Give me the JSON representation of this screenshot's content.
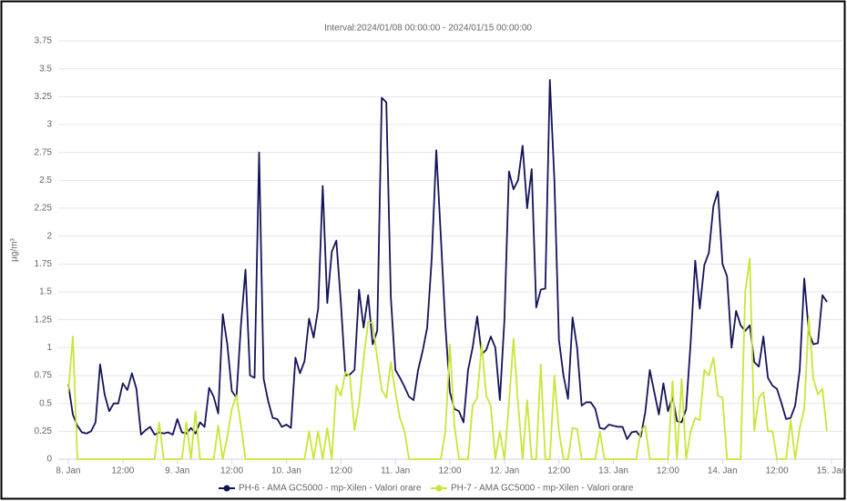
{
  "chart_data": {
    "type": "line",
    "title": "Interval:2024/01/08 00:00:00 - 2024/01/15 00:00:00",
    "y_label": "µg/m³",
    "x": [
      0,
      1,
      2,
      3,
      4,
      5,
      6,
      7,
      8,
      9,
      10,
      11,
      12,
      13,
      14,
      15,
      16,
      17,
      18,
      19,
      20,
      21,
      22,
      23,
      24,
      25,
      26,
      27,
      28,
      29,
      30,
      31,
      32,
      33,
      34,
      35,
      36,
      37,
      38,
      39,
      40,
      41,
      42,
      43,
      44,
      45,
      46,
      47,
      48,
      49,
      50,
      51,
      52,
      53,
      54,
      55,
      56,
      57,
      58,
      59,
      60,
      61,
      62,
      63,
      64,
      65,
      66,
      67,
      68,
      69,
      70,
      71,
      72,
      73,
      74,
      75,
      76,
      77,
      78,
      79,
      80,
      81,
      82,
      83,
      84,
      85,
      86,
      87,
      88,
      89,
      90,
      91,
      92,
      93,
      94,
      95,
      96,
      97,
      98,
      99,
      100,
      101,
      102,
      103,
      104,
      105,
      106,
      107,
      108,
      109,
      110,
      111,
      112,
      113,
      114,
      115,
      116,
      117,
      118,
      119,
      120,
      121,
      122,
      123,
      124,
      125,
      126,
      127,
      128,
      129,
      130,
      131,
      132,
      133,
      134,
      135,
      136,
      137,
      138,
      139,
      140,
      141,
      142,
      143,
      144,
      145,
      146,
      147,
      148,
      149,
      150,
      151,
      152,
      153,
      154,
      155,
      156,
      157,
      158,
      159,
      160,
      161,
      162,
      163,
      164,
      165,
      166,
      167
    ],
    "series": [
      {
        "name": "PH-6 - AMA GC5000 - mp-Xilen - Valori orare",
        "color": "#14145a",
        "values": [
          0.67,
          0.4,
          0.3,
          0.24,
          0.23,
          0.25,
          0.33,
          0.85,
          0.58,
          0.43,
          0.5,
          0.5,
          0.68,
          0.62,
          0.77,
          0.63,
          0.22,
          0.26,
          0.29,
          0.22,
          0.24,
          0.23,
          0.24,
          0.22,
          0.36,
          0.24,
          0.23,
          0.28,
          0.23,
          0.33,
          0.29,
          0.64,
          0.56,
          0.41,
          1.3,
          1.03,
          0.61,
          0.55,
          1.2,
          1.7,
          0.75,
          0.73,
          2.75,
          0.72,
          0.52,
          0.37,
          0.36,
          0.29,
          0.31,
          0.28,
          0.91,
          0.77,
          0.88,
          1.26,
          1.09,
          1.35,
          2.45,
          1.4,
          1.86,
          1.96,
          1.4,
          0.75,
          0.76,
          0.8,
          1.52,
          1.18,
          1.47,
          1.03,
          1.15,
          3.24,
          3.2,
          1.45,
          0.8,
          0.73,
          0.65,
          0.56,
          0.53,
          0.8,
          0.97,
          1.18,
          1.8,
          2.77,
          2.0,
          1.2,
          0.6,
          0.45,
          0.43,
          0.33,
          0.8,
          1.0,
          1.28,
          0.94,
          0.98,
          1.1,
          1.0,
          0.53,
          1.25,
          2.58,
          2.42,
          2.5,
          2.81,
          2.25,
          2.6,
          1.36,
          1.52,
          1.53,
          3.4,
          2.5,
          1.07,
          0.75,
          0.54,
          1.27,
          1.0,
          0.48,
          0.51,
          0.51,
          0.45,
          0.28,
          0.27,
          0.31,
          0.3,
          0.29,
          0.29,
          0.18,
          0.24,
          0.25,
          0.2,
          0.42,
          0.8,
          0.6,
          0.4,
          0.68,
          0.43,
          0.56,
          0.34,
          0.33,
          0.45,
          1.05,
          1.78,
          1.35,
          1.74,
          1.85,
          2.27,
          2.4,
          1.75,
          1.64,
          1.0,
          1.33,
          1.2,
          1.15,
          1.2,
          0.87,
          0.83,
          1.1,
          0.73,
          0.66,
          0.63,
          0.5,
          0.36,
          0.37,
          0.48,
          0.8,
          1.62,
          1.14,
          1.03,
          1.04,
          1.47,
          1.41
        ]
      },
      {
        "name": "PH-7 - AMA GC5000 - mp-Xilen - Valori orare",
        "color": "#c9e63a",
        "values": [
          0.6,
          1.1,
          0,
          0,
          0,
          0,
          0,
          0,
          0,
          0,
          0,
          0,
          0,
          0,
          0,
          0,
          0,
          0,
          0,
          0,
          0.33,
          0,
          0,
          0,
          0,
          0,
          0.33,
          0,
          0.43,
          0,
          0,
          0,
          0,
          0.3,
          0,
          0.2,
          0.45,
          0.57,
          0.3,
          0,
          0,
          0,
          0,
          0,
          0,
          0,
          0,
          0,
          0,
          0,
          0,
          0,
          0,
          0.25,
          0,
          0.25,
          0,
          0.28,
          0,
          0.66,
          0.57,
          0.78,
          0.74,
          0.26,
          0.5,
          0.9,
          1.23,
          1.22,
          0.9,
          0.62,
          0.55,
          0.87,
          0.6,
          0.37,
          0.25,
          0,
          0,
          0,
          0,
          0,
          0,
          0,
          0,
          0.25,
          1.03,
          0.3,
          0,
          0,
          0,
          0.48,
          0.55,
          1.03,
          0.57,
          0.48,
          0,
          0.25,
          0,
          0.5,
          1.08,
          0.5,
          0,
          0.53,
          0,
          0,
          0.85,
          0,
          0,
          0.75,
          0.25,
          0,
          0,
          0.28,
          0.27,
          0,
          0,
          0,
          0,
          0.25,
          0,
          0,
          0,
          0,
          0,
          0,
          0,
          0,
          0.25,
          0.3,
          0,
          0,
          0,
          0,
          0,
          0.7,
          0,
          0.72,
          0,
          0.25,
          0.37,
          0.35,
          0.8,
          0.75,
          0.91,
          0.57,
          0.55,
          0,
          0,
          0,
          0,
          1.5,
          1.8,
          0.25,
          0.55,
          0.6,
          0.25,
          0.25,
          0,
          0,
          0,
          0.35,
          0,
          0.28,
          0.45,
          1.27,
          0.72,
          0.58,
          0.63,
          0.25
        ]
      }
    ],
    "xlim": [
      0,
      168
    ],
    "xticks": [
      {
        "value": 0,
        "label": "8. Jan"
      },
      {
        "value": 12,
        "label": "12:00"
      },
      {
        "value": 24,
        "label": "9. Jan"
      },
      {
        "value": 36,
        "label": "12:00"
      },
      {
        "value": 48,
        "label": "10. Jan"
      },
      {
        "value": 60,
        "label": "12:00"
      },
      {
        "value": 72,
        "label": "11. Jan"
      },
      {
        "value": 84,
        "label": "12:00"
      },
      {
        "value": 96,
        "label": "12. Jan"
      },
      {
        "value": 108,
        "label": "12:00"
      },
      {
        "value": 120,
        "label": "13. Jan"
      },
      {
        "value": 132,
        "label": "12:00"
      },
      {
        "value": 144,
        "label": "14. Jan"
      },
      {
        "value": 156,
        "label": "12:00"
      },
      {
        "value": 168,
        "label": "15. Jan"
      }
    ],
    "ylim": [
      0,
      3.75
    ],
    "yticks": [
      0,
      0.25,
      0.5,
      0.75,
      1,
      1.25,
      1.5,
      1.75,
      2,
      2.25,
      2.5,
      2.75,
      3,
      3.25,
      3.5,
      3.75
    ],
    "grid": true
  }
}
